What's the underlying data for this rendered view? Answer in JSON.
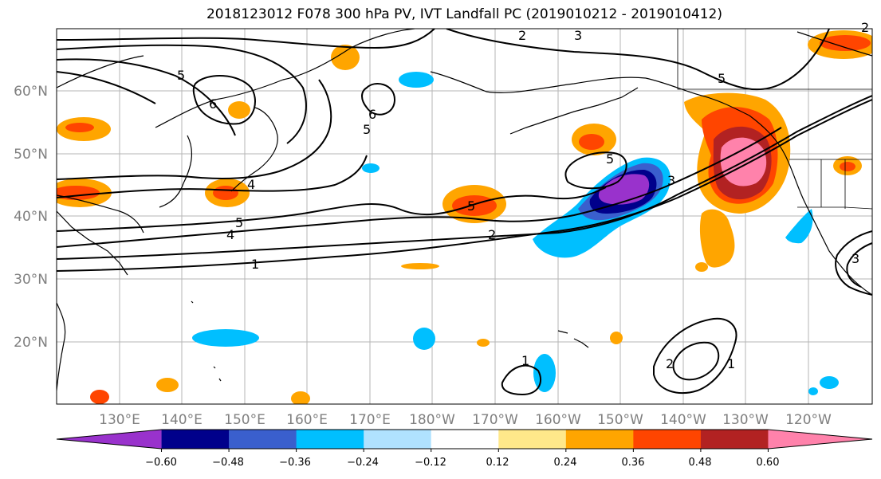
{
  "title": "2018123012 F078 300 hPa PV, IVT Landfall PC (2019010212 - 2019010412)",
  "lat_labels": [
    "60°N",
    "50°N",
    "40°N",
    "30°N",
    "20°N"
  ],
  "lon_labels": [
    "130°E",
    "140°E",
    "150°E",
    "160°E",
    "170°E",
    "180°W",
    "170°W",
    "160°W",
    "150°W",
    "140°W",
    "130°W",
    "120°W"
  ],
  "contour_labels": [
    "1",
    "2",
    "4",
    "5",
    "4",
    "6",
    "5",
    "6",
    "5",
    "2",
    "3",
    "5",
    "5",
    "3",
    "1",
    "2",
    "2",
    "3",
    "1"
  ],
  "colorbar": {
    "colors": [
      "#9932cc",
      "#00008b",
      "#3a5fcd",
      "#00bfff",
      "#b0e2ff",
      "#ffffff",
      "#ffe88a",
      "#ffa500",
      "#ff4500",
      "#b22222",
      "#ff82ab"
    ],
    "tick_labels": [
      "−0.60",
      "−0.48",
      "−0.36",
      "−0.24",
      "−0.12",
      "0.12",
      "0.24",
      "0.36",
      "0.48",
      "0.60"
    ]
  }
}
